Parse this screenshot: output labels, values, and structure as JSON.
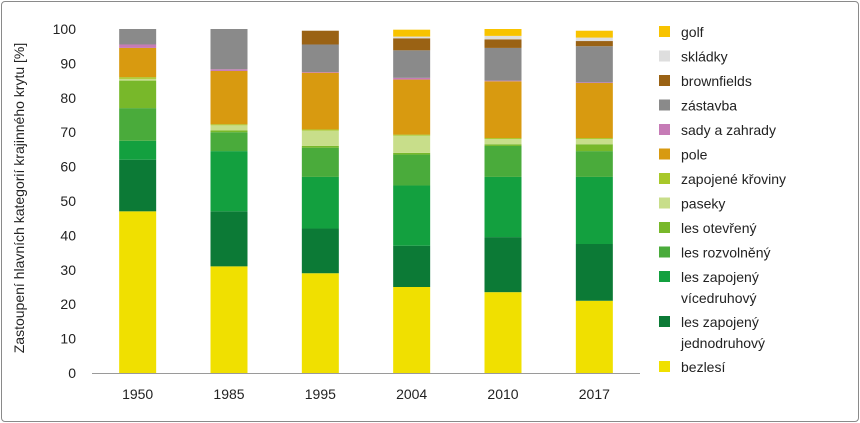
{
  "chart_data": {
    "type": "bar",
    "stacked": true,
    "title": "",
    "xlabel": "",
    "ylabel": "Zastoupení hlavních kategorií krajinného krytu [%]",
    "ylim": [
      0,
      100
    ],
    "yticks": [
      0,
      10,
      20,
      30,
      40,
      50,
      60,
      70,
      80,
      90,
      100
    ],
    "grid": false,
    "legend_position": "right",
    "categories": [
      "1950",
      "1985",
      "1995",
      "2004",
      "2010",
      "2017"
    ],
    "series": [
      {
        "name": "bezlesí",
        "legend": [
          "bezlesí"
        ],
        "color": "#f0e000",
        "values": [
          47,
          31,
          29,
          25,
          23.5,
          21
        ]
      },
      {
        "name": "les zapojený jednodruhový",
        "legend": [
          "les zapojený",
          "jednodruhový"
        ],
        "color": "#0c7a36",
        "values": [
          15,
          16,
          13,
          12,
          16,
          16.5
        ]
      },
      {
        "name": "les zapojený vícedruhový",
        "legend": [
          "les zapojený",
          "vícedruhový"
        ],
        "color": "#13a03f",
        "values": [
          5.5,
          17.5,
          15,
          17.5,
          17.5,
          19.5
        ]
      },
      {
        "name": "les rozvolněný",
        "legend": [
          "les rozvolněný"
        ],
        "color": "#4aab3b",
        "values": [
          9.5,
          5.5,
          8.5,
          9,
          9,
          7.5
        ]
      },
      {
        "name": "les otevřený",
        "legend": [
          "les otevřený"
        ],
        "color": "#78b82a",
        "values": [
          8,
          0.5,
          0.5,
          0.5,
          0.5,
          2
        ]
      },
      {
        "name": "paseky",
        "legend": [
          "paseky"
        ],
        "color": "#c8de8a",
        "values": [
          0.5,
          1.5,
          4.5,
          5,
          1.5,
          1.5
        ]
      },
      {
        "name": "zapojené křoviny",
        "legend": [
          "zapojené křoviny"
        ],
        "color": "#a8c82a",
        "values": [
          0.5,
          0.3,
          0.3,
          0.3,
          0.3,
          0.3
        ]
      },
      {
        "name": "pole",
        "legend": [
          "pole"
        ],
        "color": "#d89a10",
        "values": [
          8.5,
          15.5,
          16.5,
          16,
          16.5,
          16
        ]
      },
      {
        "name": "sady a zahrady",
        "legend": [
          "sady a zahrady"
        ],
        "color": "#c67bb6",
        "values": [
          1,
          0.5,
          0.2,
          0.5,
          0.2,
          0.2
        ]
      },
      {
        "name": "zástavba",
        "legend": [
          "zástavba"
        ],
        "color": "#8a8a8a",
        "values": [
          4.5,
          11.7,
          8,
          8,
          9.5,
          10.5
        ]
      },
      {
        "name": "brownfields",
        "legend": [
          "brownfields"
        ],
        "color": "#9a6214",
        "values": [
          0,
          0,
          4,
          3.5,
          2.5,
          1.5
        ]
      },
      {
        "name": "skládky",
        "legend": [
          "skládky"
        ],
        "color": "#dedede",
        "values": [
          0,
          0,
          0,
          0.5,
          1,
          1
        ]
      },
      {
        "name": "golf",
        "legend": [
          "golf"
        ],
        "color": "#f8c300",
        "values": [
          0,
          0,
          0,
          2,
          2,
          2
        ]
      }
    ]
  }
}
